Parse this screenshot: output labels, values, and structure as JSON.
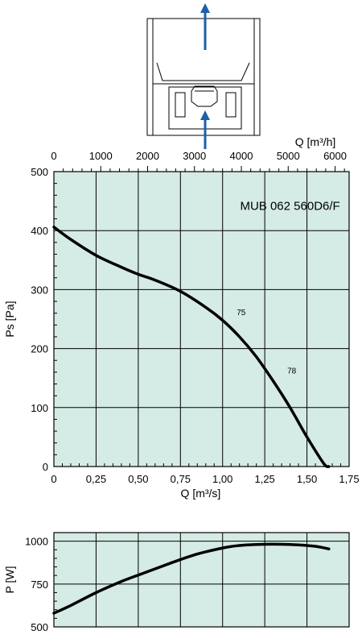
{
  "diagram": {
    "arrow_color": "#1f5fa8"
  },
  "chart_data": [
    {
      "type": "line",
      "title": "MUB 062 560D6/F",
      "xlabel": "Q [m³/s]",
      "x2label": "Q [m³/h]",
      "ylabel": "Ps [Pa]",
      "xlim": [
        0,
        1.75
      ],
      "ylim": [
        0,
        500
      ],
      "x_ticks": [
        "0",
        "0,25",
        "0,50",
        "0,75",
        "1,00",
        "1,25",
        "1,50",
        "1,75"
      ],
      "x2_ticks": [
        "0",
        "1000",
        "2000",
        "3000",
        "4000",
        "5000",
        "6000"
      ],
      "y_ticks": [
        "0",
        "100",
        "200",
        "300",
        "400",
        "500"
      ],
      "grid": true,
      "background": "#d5ebe5",
      "annotations": [
        {
          "text": "75",
          "x": 1.11,
          "y": 262
        },
        {
          "text": "78",
          "x": 1.41,
          "y": 163
        }
      ],
      "series": [
        {
          "x": [
            0,
            0.1,
            0.25,
            0.4,
            0.5,
            0.6,
            0.75,
            0.9,
            1.0,
            1.1,
            1.2,
            1.3,
            1.4,
            1.5,
            1.6,
            1.63
          ],
          "y": [
            406,
            385,
            358,
            338,
            326,
            316,
            297,
            270,
            248,
            220,
            186,
            145,
            100,
            50,
            5,
            0
          ]
        }
      ]
    },
    {
      "type": "line",
      "ylabel": "P [W]",
      "xlim": [
        0,
        1.75
      ],
      "ylim": [
        500,
        1050
      ],
      "y_ticks": [
        "500",
        "750",
        "1000"
      ],
      "grid": true,
      "background": "#d5ebe5",
      "series": [
        {
          "x": [
            0,
            0.1,
            0.25,
            0.4,
            0.55,
            0.7,
            0.85,
            1.0,
            1.1,
            1.25,
            1.35,
            1.45,
            1.55,
            1.63
          ],
          "y": [
            580,
            625,
            700,
            765,
            820,
            875,
            925,
            960,
            975,
            982,
            982,
            978,
            970,
            955
          ]
        }
      ]
    }
  ]
}
